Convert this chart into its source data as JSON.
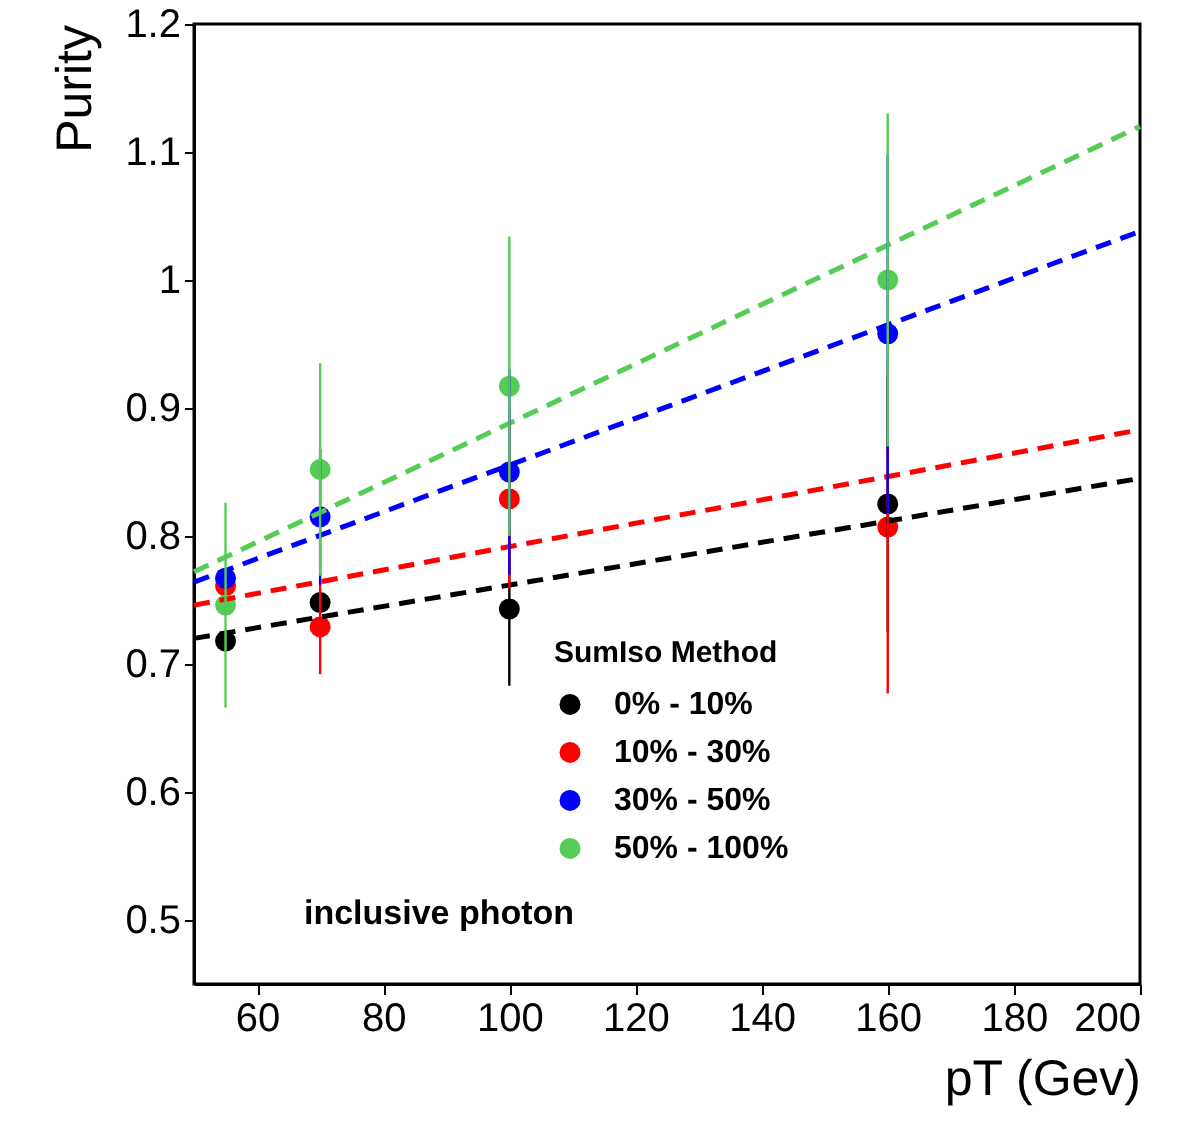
{
  "chart_data": {
    "type": "scatter",
    "xlabel": "pT (Gev)",
    "ylabel": "Purity",
    "legend_title": "SumIso Method",
    "xlim": [
      50,
      200
    ],
    "xticks": [
      60,
      80,
      100,
      120,
      140,
      160,
      180,
      200
    ],
    "ylim": [
      0.45,
      1.2
    ],
    "yticks": [
      0.5,
      0.6,
      0.7,
      0.8,
      0.9,
      1,
      1.1,
      1.2
    ],
    "grid": false,
    "legend": "bottom right",
    "marker": "circle",
    "annotations": [
      "inclusive photon"
    ],
    "series": [
      {
        "name": "0% - 10%",
        "color": "#000000",
        "x": [
          55,
          70,
          100,
          160
        ],
        "values": [
          0.718,
          0.748,
          0.743,
          0.825
        ],
        "errors": [
          null,
          null,
          0.06,
          0.1
        ]
      },
      {
        "name": "10% - 30%",
        "color": "#ff0000",
        "x": [
          55,
          70,
          100,
          160
        ],
        "values": [
          0.761,
          0.729,
          0.829,
          0.807
        ],
        "errors": [
          null,
          0.037,
          0.07,
          0.13
        ]
      },
      {
        "name": "30% - 50%",
        "color": "#0000ff",
        "x": [
          55,
          70,
          100,
          160
        ],
        "values": [
          0.767,
          0.815,
          0.85,
          0.958
        ],
        "errors": [
          null,
          0.053,
          0.08,
          0.14
        ]
      },
      {
        "name": "50% - 100%",
        "color": "#55cc55",
        "x": [
          55,
          70,
          100,
          160
        ],
        "values": [
          0.746,
          0.852,
          0.917,
          1.0
        ],
        "errors": [
          0.08,
          0.083,
          0.117,
          0.13
        ]
      },
      {
        "type": "line",
        "marker": "none",
        "line_style": "dashed",
        "color": "#000000",
        "x": [
          50,
          200
        ],
        "values": [
          0.72,
          0.845
        ]
      },
      {
        "type": "line",
        "marker": "none",
        "line_style": "dashed",
        "color": "#ff0000",
        "x": [
          50,
          200
        ],
        "values": [
          0.746,
          0.883
        ]
      },
      {
        "type": "line",
        "marker": "none",
        "line_style": "dashed",
        "color": "#0000ff",
        "x": [
          50,
          200
        ],
        "values": [
          0.764,
          1.038
        ]
      },
      {
        "type": "line",
        "marker": "none",
        "line_style": "dashed",
        "color": "#55cc55",
        "x": [
          50,
          200
        ],
        "values": [
          0.772,
          1.12
        ]
      }
    ]
  }
}
